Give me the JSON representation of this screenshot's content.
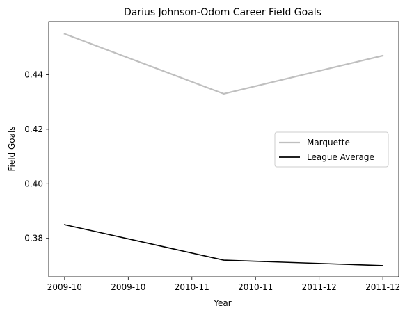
{
  "chart_data": {
    "type": "line",
    "title": "Darius Johnson-Odom Career Field Goals",
    "xlabel": "Year",
    "ylabel": "Field Goals",
    "x": [
      0,
      1,
      2
    ],
    "x_tick_labels": [
      "2009-10",
      "2009-10",
      "2010-11",
      "2010-11",
      "2011-12",
      "2011-12"
    ],
    "x_ticks": [
      0,
      0.4,
      0.8,
      1.2,
      1.6,
      2.0
    ],
    "xlim": [
      -0.1,
      2.1
    ],
    "ylim": [
      0.3659,
      0.4595
    ],
    "y_ticks": [
      0.38,
      0.4,
      0.42,
      0.44
    ],
    "y_tick_labels": [
      "0.38",
      "0.40",
      "0.42",
      "0.44"
    ],
    "grid": false,
    "legend_position": "center-right",
    "series": [
      {
        "name": "Marquette",
        "values": [
          0.455,
          0.433,
          0.447
        ],
        "color": "#bfbfbf"
      },
      {
        "name": "League Average",
        "values": [
          0.385,
          0.372,
          0.37
        ],
        "color": "#000000"
      }
    ]
  }
}
